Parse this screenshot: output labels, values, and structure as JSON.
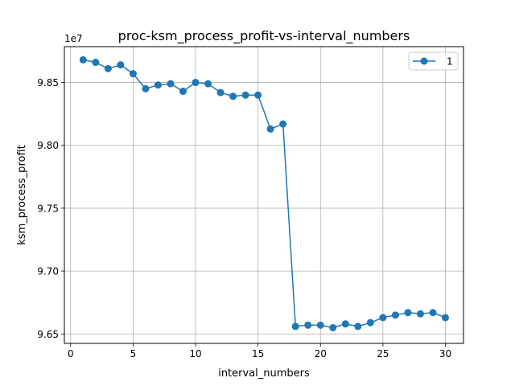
{
  "chart_data": {
    "type": "line",
    "title": "proc-ksm_process_profit-vs-interval_numbers",
    "xlabel": "interval_numbers",
    "ylabel": "ksm_process_profit",
    "y_offset_label": "1e7",
    "xlim": [
      -0.5,
      31.45
    ],
    "ylim": [
      9.6425,
      9.8785
    ],
    "x_ticks": [
      0,
      5,
      10,
      15,
      20,
      25,
      30
    ],
    "x_tick_labels": [
      "0",
      "5",
      "10",
      "15",
      "20",
      "25",
      "30"
    ],
    "y_ticks": [
      9.65,
      9.7,
      9.75,
      9.8,
      9.85
    ],
    "y_tick_labels": [
      "9.65",
      "9.70",
      "9.75",
      "9.80",
      "9.85"
    ],
    "grid": true,
    "legend_position": "top-right",
    "series": [
      {
        "name": "1",
        "color": "#1f77b4",
        "marker": "circle",
        "x": [
          1,
          2,
          3,
          4,
          5,
          6,
          7,
          8,
          9,
          10,
          11,
          12,
          13,
          14,
          15,
          16,
          17,
          18,
          19,
          20,
          21,
          22,
          23,
          24,
          25,
          26,
          27,
          28,
          29,
          30
        ],
        "y": [
          9.868,
          9.866,
          9.861,
          9.864,
          9.857,
          9.845,
          9.848,
          9.849,
          9.843,
          9.85,
          9.849,
          9.842,
          9.839,
          9.84,
          9.84,
          9.813,
          9.817,
          9.656,
          9.657,
          9.657,
          9.655,
          9.658,
          9.656,
          9.659,
          9.663,
          9.665,
          9.667,
          9.666,
          9.667,
          9.663
        ]
      }
    ]
  }
}
